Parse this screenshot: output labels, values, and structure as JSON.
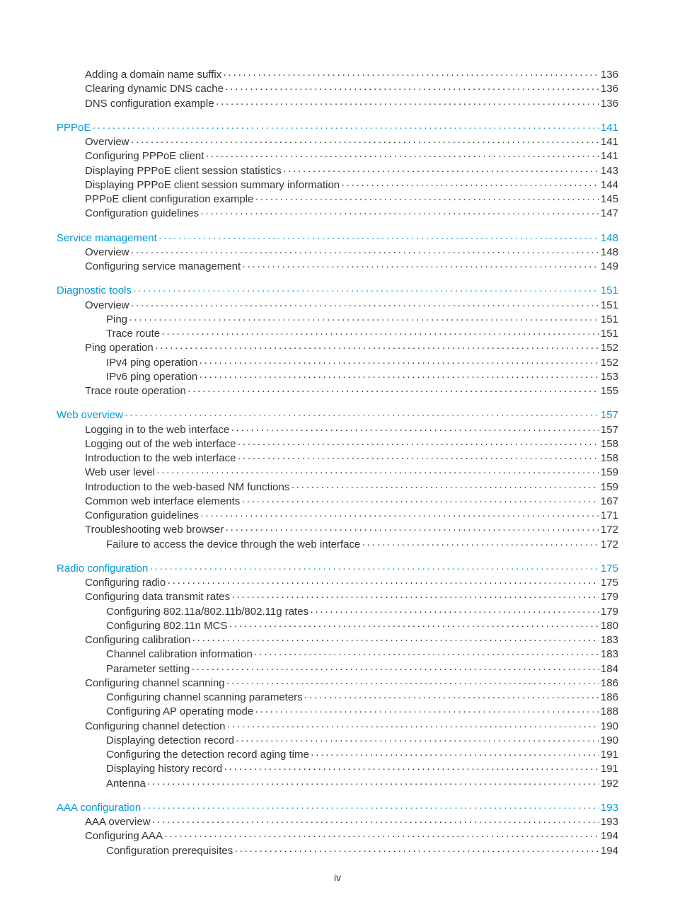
{
  "leader_char": "·",
  "page_label": "iv",
  "sections": [
    {
      "heading": null,
      "items": [
        {
          "indent": 1,
          "label": "Adding a domain name suffix",
          "page": "136"
        },
        {
          "indent": 1,
          "label": "Clearing dynamic DNS cache",
          "page": "136"
        },
        {
          "indent": 1,
          "label": "DNS configuration example",
          "page": "136"
        }
      ]
    },
    {
      "heading": {
        "label": "PPPoE",
        "page": "141"
      },
      "items": [
        {
          "indent": 1,
          "label": "Overview",
          "page": "141"
        },
        {
          "indent": 1,
          "label": "Configuring PPPoE client",
          "page": "141"
        },
        {
          "indent": 1,
          "label": "Displaying PPPoE client session statistics",
          "page": "143"
        },
        {
          "indent": 1,
          "label": "Displaying PPPoE client session summary information",
          "page": "144"
        },
        {
          "indent": 1,
          "label": "PPPoE client configuration example",
          "page": "145"
        },
        {
          "indent": 1,
          "label": "Configuration guidelines",
          "page": "147"
        }
      ]
    },
    {
      "heading": {
        "label": "Service management",
        "page": "148"
      },
      "items": [
        {
          "indent": 1,
          "label": "Overview",
          "page": "148"
        },
        {
          "indent": 1,
          "label": "Configuring service management",
          "page": "149"
        }
      ]
    },
    {
      "heading": {
        "label": "Diagnostic tools",
        "page": "151"
      },
      "items": [
        {
          "indent": 1,
          "label": "Overview",
          "page": "151"
        },
        {
          "indent": 2,
          "label": "Ping",
          "page": "151"
        },
        {
          "indent": 2,
          "label": "Trace route",
          "page": "151"
        },
        {
          "indent": 1,
          "label": "Ping operation",
          "page": "152"
        },
        {
          "indent": 2,
          "label": "IPv4 ping operation",
          "page": "152"
        },
        {
          "indent": 2,
          "label": "IPv6 ping operation",
          "page": "153"
        },
        {
          "indent": 1,
          "label": "Trace route operation",
          "page": "155"
        }
      ]
    },
    {
      "heading": {
        "label": "Web overview",
        "page": "157"
      },
      "items": [
        {
          "indent": 1,
          "label": "Logging in to the web interface",
          "page": "157"
        },
        {
          "indent": 1,
          "label": "Logging out of the web interface",
          "page": "158"
        },
        {
          "indent": 1,
          "label": "Introduction to the web interface",
          "page": "158"
        },
        {
          "indent": 1,
          "label": "Web user level",
          "page": "159"
        },
        {
          "indent": 1,
          "label": "Introduction to the web-based NM functions",
          "page": "159"
        },
        {
          "indent": 1,
          "label": "Common web interface elements",
          "page": "167"
        },
        {
          "indent": 1,
          "label": "Configuration guidelines",
          "page": "171"
        },
        {
          "indent": 1,
          "label": "Troubleshooting web browser",
          "page": "172"
        },
        {
          "indent": 2,
          "label": "Failure to access the device through the web interface",
          "page": "172"
        }
      ]
    },
    {
      "heading": {
        "label": "Radio configuration",
        "page": "175"
      },
      "items": [
        {
          "indent": 1,
          "label": "Configuring radio",
          "page": "175"
        },
        {
          "indent": 1,
          "label": "Configuring data transmit rates",
          "page": "179"
        },
        {
          "indent": 2,
          "label": "Configuring 802.11a/802.11b/802.11g rates",
          "page": "179"
        },
        {
          "indent": 2,
          "label": "Configuring 802.11n MCS",
          "page": "180"
        },
        {
          "indent": 1,
          "label": "Configuring calibration",
          "page": "183"
        },
        {
          "indent": 2,
          "label": "Channel calibration information",
          "page": "183"
        },
        {
          "indent": 2,
          "label": "Parameter setting",
          "page": "184"
        },
        {
          "indent": 1,
          "label": "Configuring channel scanning",
          "page": "186"
        },
        {
          "indent": 2,
          "label": "Configuring channel scanning parameters",
          "page": "186"
        },
        {
          "indent": 2,
          "label": "Configuring AP operating mode",
          "page": "188"
        },
        {
          "indent": 1,
          "label": "Configuring channel detection",
          "page": "190"
        },
        {
          "indent": 2,
          "label": "Displaying detection record",
          "page": "190"
        },
        {
          "indent": 2,
          "label": "Configuring the detection record aging time",
          "page": "191"
        },
        {
          "indent": 2,
          "label": "Displaying history record",
          "page": "191"
        },
        {
          "indent": 2,
          "label": "Antenna",
          "page": "192"
        }
      ]
    },
    {
      "heading": {
        "label": "AAA configuration",
        "page": "193"
      },
      "items": [
        {
          "indent": 1,
          "label": "AAA overview",
          "page": "193"
        },
        {
          "indent": 1,
          "label": "Configuring AAA",
          "page": "194"
        },
        {
          "indent": 2,
          "label": "Configuration prerequisites",
          "page": "194"
        }
      ]
    }
  ]
}
